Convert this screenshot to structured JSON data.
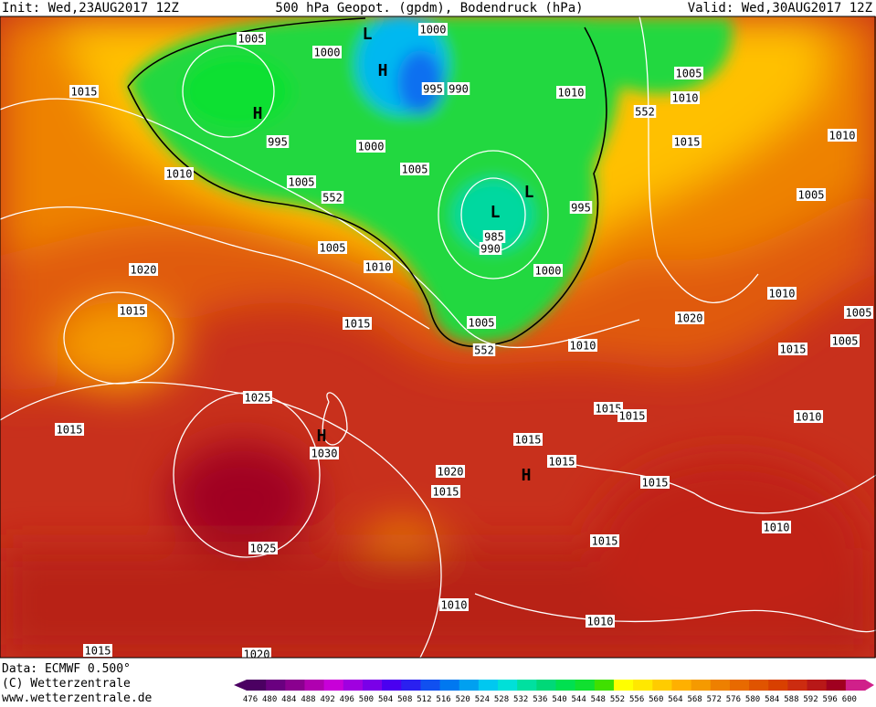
{
  "header": {
    "init": "Init: Wed,23AUG2017 12Z",
    "title": "500 hPa Geopot. (gpdm), Bodendruck (hPa)",
    "valid": "Valid: Wed,30AUG2017 12Z"
  },
  "isobar_labels": [
    "1005",
    "1000",
    "1000",
    "995",
    "990",
    "1015",
    "1005",
    "1010",
    "1010",
    "552",
    "995",
    "1000",
    "1005",
    "1010",
    "1005",
    "552",
    "1015",
    "1010",
    "1005",
    "995",
    "985",
    "990",
    "1005",
    "1010",
    "1000",
    "1020",
    "1015",
    "1010",
    "1020",
    "1005",
    "1015",
    "1005",
    "552",
    "1010",
    "1015",
    "1005",
    "1025",
    "1015",
    "1015",
    "1010",
    "1015",
    "1030",
    "1015",
    "1015",
    "1020",
    "1015",
    "1015",
    "1010",
    "1025",
    "1015",
    "1010",
    "1010",
    "1015",
    "1020"
  ],
  "pressure_centers": [
    "L",
    "H",
    "H",
    "L",
    "L",
    "H",
    "H"
  ],
  "footer": {
    "data": "Data: ECMWF  0.500°",
    "copyright": "(C) Wetterzentrale",
    "url": "www.wetterzentrale.de"
  },
  "color_scale": {
    "values": [
      476,
      480,
      484,
      488,
      492,
      496,
      500,
      504,
      508,
      512,
      516,
      520,
      524,
      528,
      532,
      536,
      540,
      544,
      548,
      552,
      556,
      560,
      564,
      568,
      572,
      576,
      580,
      584,
      588,
      592,
      596,
      600
    ],
    "colors": [
      "#4b0062",
      "#6a0080",
      "#8a008f",
      "#b000b0",
      "#c800d8",
      "#a000e0",
      "#7a00e8",
      "#4a00f0",
      "#2a20f0",
      "#1050f0",
      "#0078f0",
      "#00a0f0",
      "#00c8f0",
      "#00e0d8",
      "#00e0a0",
      "#00d878",
      "#00e050",
      "#10e030",
      "#40e000",
      "#ffff00",
      "#ffe800",
      "#ffcc00",
      "#ffb000",
      "#f59a00",
      "#ee8000",
      "#e86a00",
      "#e05400",
      "#d84000",
      "#cc2c10",
      "#b81818",
      "#a00020",
      "#d0208a"
    ]
  }
}
